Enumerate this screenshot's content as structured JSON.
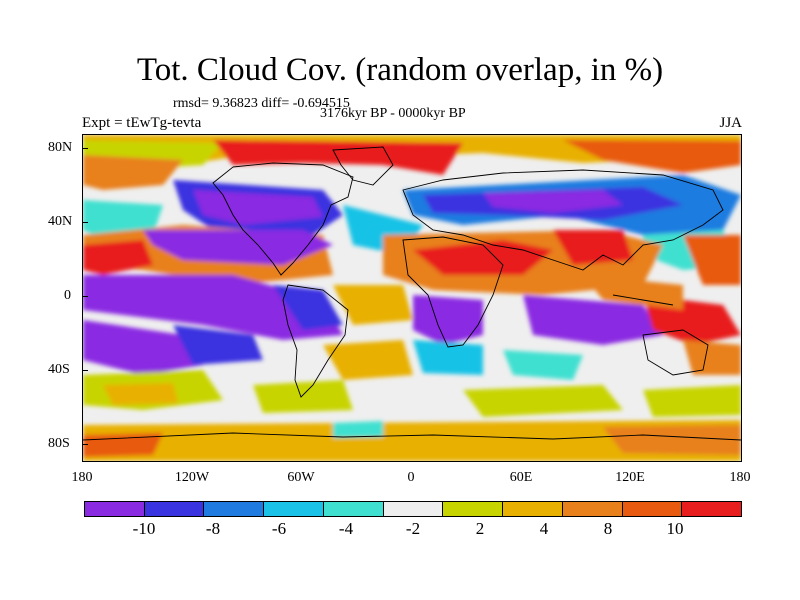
{
  "title": "Tot. Cloud Cov. (random overlap, in %)",
  "stats": "rmsd= 9.36823 diff= -0.694515",
  "period": "3176kyr BP - 0000kyr BP",
  "experiment": "Expt = tEwTg-tevta",
  "season": "JJA",
  "lat_labels": [
    "80N",
    "40N",
    "0",
    "40S",
    "80S"
  ],
  "lon_labels": [
    "180",
    "120W",
    "60W",
    "0",
    "60E",
    "120E",
    "180"
  ],
  "colorbar": {
    "colors": [
      "#8a2be2",
      "#3a33e0",
      "#1f7be0",
      "#19c2e6",
      "#40e0d0",
      "#eeeeee",
      "#c8d400",
      "#e8b000",
      "#e8801c",
      "#e85a10",
      "#e81e1e"
    ],
    "labels": [
      "-10",
      "-8",
      "-6",
      "-4",
      "-2",
      "2",
      "4",
      "8",
      "10"
    ]
  },
  "colors": {
    "neutral": "#efefef",
    "coast": "#000000"
  }
}
